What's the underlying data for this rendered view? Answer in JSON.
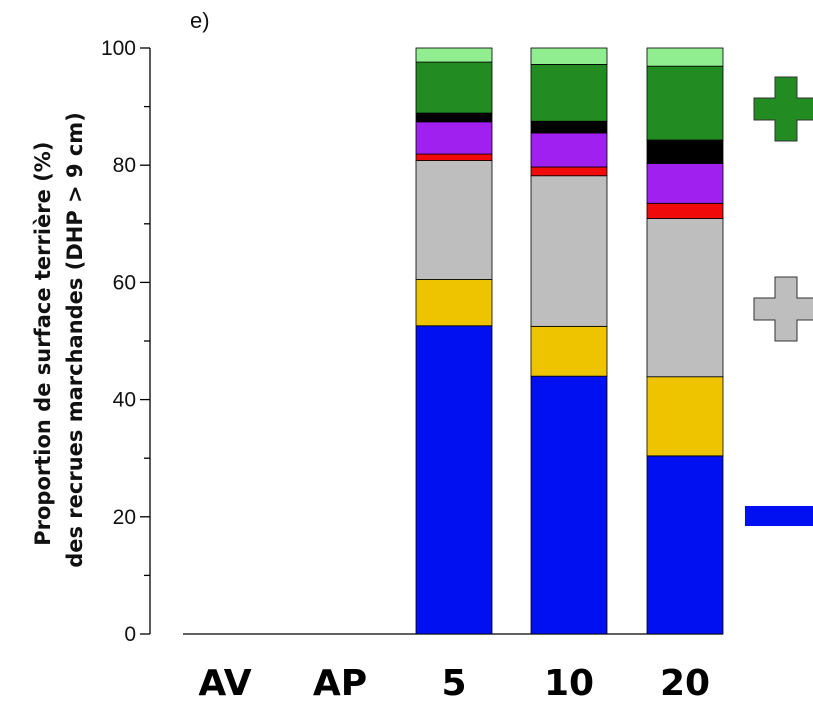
{
  "chart_data": {
    "type": "bar",
    "stacked": true,
    "panel_label": "e)",
    "ylabel_lines": [
      "Proportion de surface terrière (%)",
      "des recrues marchandes (DHP > 9 cm)"
    ],
    "ylim": [
      0,
      100
    ],
    "yticks": [
      0,
      20,
      40,
      60,
      80,
      100
    ],
    "categories": [
      "AV",
      "AP",
      "5",
      "10",
      "20"
    ],
    "grid": false,
    "series": [
      {
        "color": "#0010F0",
        "values": [
          0,
          0,
          52.6,
          44.0,
          30.4
        ]
      },
      {
        "color": "#EEC400",
        "values": [
          0,
          0,
          7.9,
          8.5,
          13.5
        ]
      },
      {
        "color": "#BEBEBE",
        "values": [
          0,
          0,
          20.3,
          25.7,
          27.0
        ]
      },
      {
        "color": "#F00A0A",
        "values": [
          0,
          0,
          1.1,
          1.5,
          2.6
        ]
      },
      {
        "color": "#A020F0",
        "values": [
          0,
          0,
          5.5,
          5.8,
          6.8
        ]
      },
      {
        "color": "#000000",
        "values": [
          0,
          0,
          1.5,
          2.0,
          4.0
        ]
      },
      {
        "color": "#228B22",
        "values": [
          0,
          0,
          8.7,
          9.7,
          12.6
        ]
      },
      {
        "color": "#90EE90",
        "values": [
          0,
          0,
          2.4,
          2.8,
          3.1
        ]
      }
    ],
    "legend_symbols": [
      {
        "icon": "plus-icon",
        "color": "#228B22"
      },
      {
        "icon": "plus-icon",
        "color": "#BEBEBE"
      },
      {
        "icon": "minus-icon",
        "color": "#0010F0"
      }
    ]
  }
}
